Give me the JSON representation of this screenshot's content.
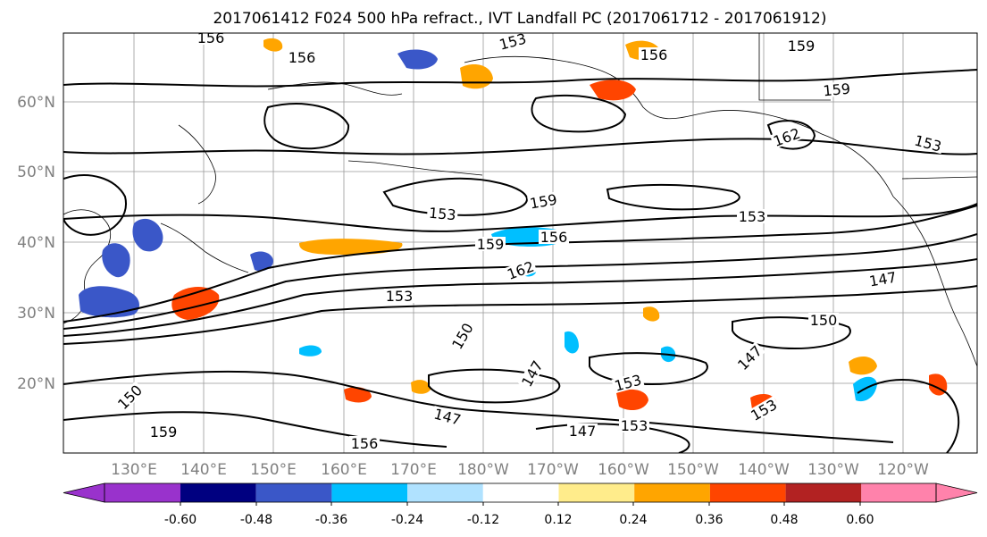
{
  "title": "2017061412 F024 500 hPa refract., IVT Landfall PC (2017061712 - 2017061912)",
  "map": {
    "lat_labels": [
      "60°N",
      "50°N",
      "40°N",
      "30°N",
      "20°N"
    ],
    "lon_labels": [
      "130°E",
      "140°E",
      "150°E",
      "160°E",
      "170°E",
      "180°W",
      "170°W",
      "160°W",
      "150°W",
      "140°W",
      "130°W",
      "120°W"
    ],
    "gridlines": true,
    "contour_labels": [
      {
        "text": "156"
      },
      {
        "text": "156"
      },
      {
        "text": "156"
      },
      {
        "text": "153"
      },
      {
        "text": "159"
      },
      {
        "text": "159"
      },
      {
        "text": "162"
      },
      {
        "text": "153"
      },
      {
        "text": "159"
      },
      {
        "text": "153"
      },
      {
        "text": "153"
      },
      {
        "text": "159"
      },
      {
        "text": "156"
      },
      {
        "text": "162"
      },
      {
        "text": "153"
      },
      {
        "text": "147"
      },
      {
        "text": "150"
      },
      {
        "text": "150"
      },
      {
        "text": "147"
      },
      {
        "text": "153"
      },
      {
        "text": "147"
      },
      {
        "text": "147"
      },
      {
        "text": "150"
      },
      {
        "text": "153"
      },
      {
        "text": "147"
      },
      {
        "text": "153"
      },
      {
        "text": "156"
      },
      {
        "text": "159"
      }
    ]
  },
  "colorbar": {
    "colors": [
      "#9932cc",
      "#000080",
      "#3a57c8",
      "#00bfff",
      "#b0e2ff",
      "#ffffff",
      "#ffec8b",
      "#ffa500",
      "#ff4500",
      "#b22222",
      "#ff82ab"
    ],
    "tick_labels": [
      "-0.60",
      "-0.48",
      "-0.36",
      "-0.24",
      "-0.12",
      "0.12",
      "0.24",
      "0.36",
      "0.48",
      "0.60"
    ]
  }
}
